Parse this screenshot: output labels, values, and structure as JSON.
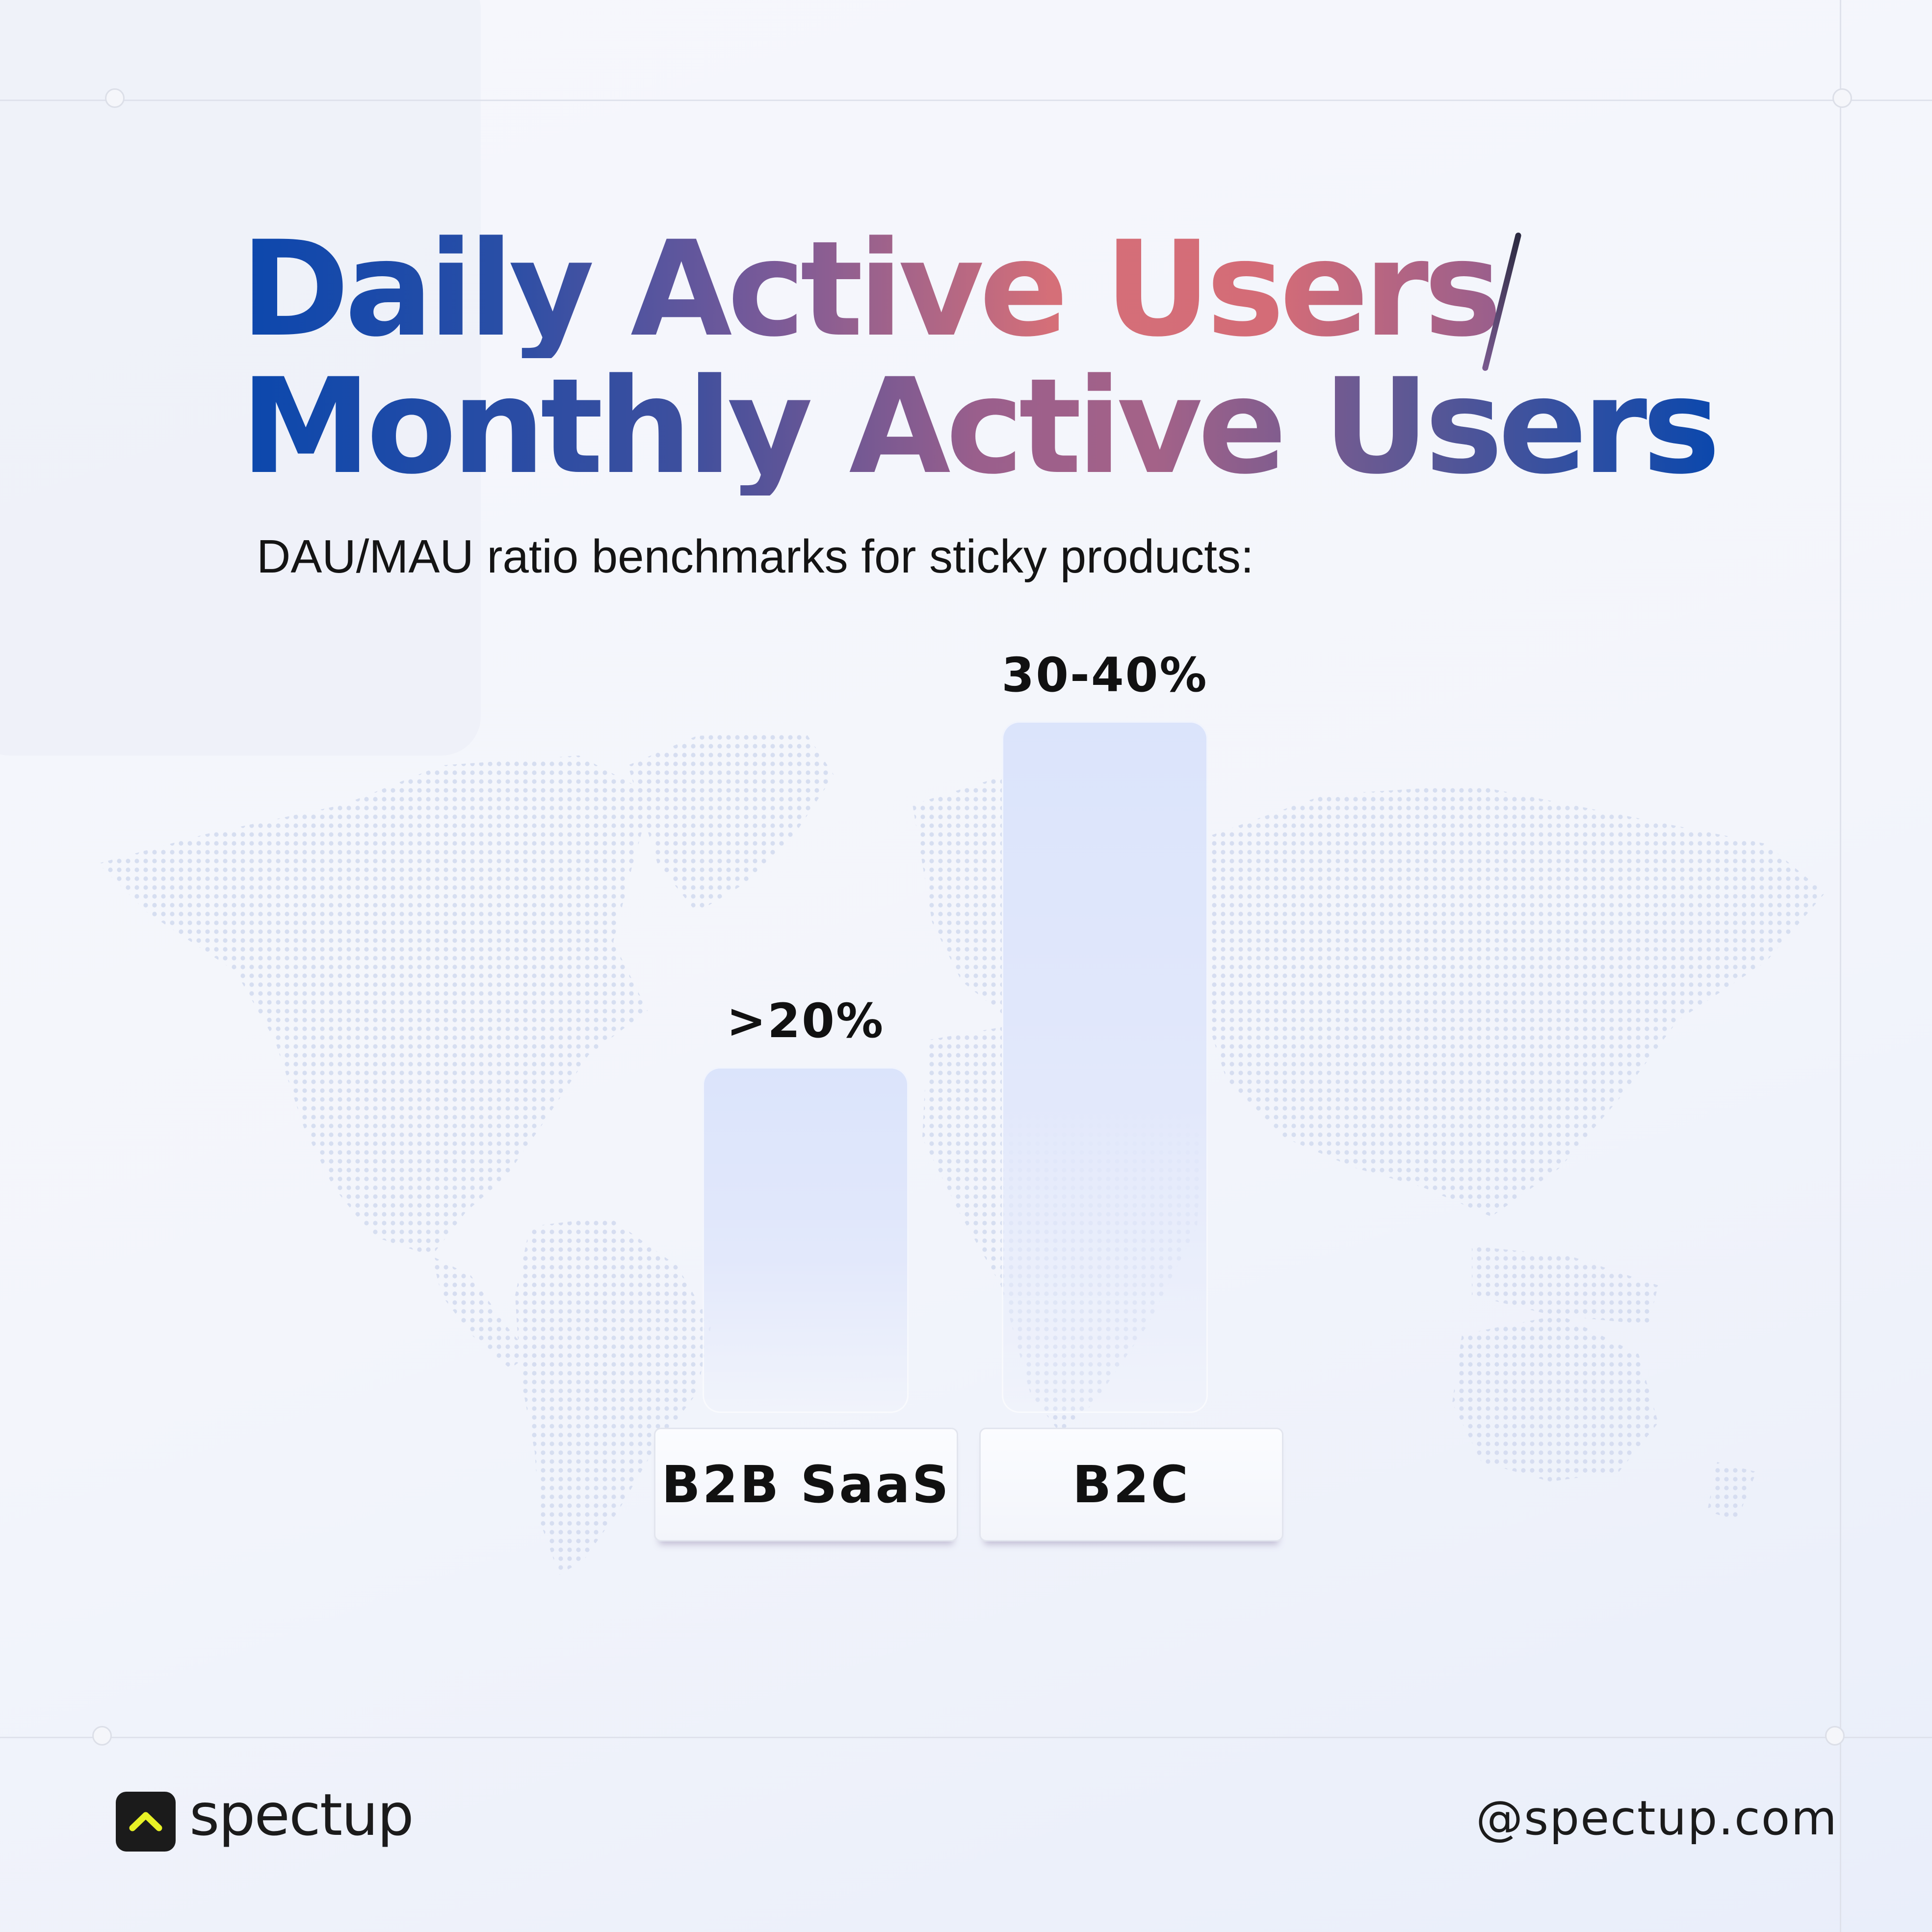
{
  "title": {
    "line1": "Daily Active Users",
    "line2": "Monthly Active Users"
  },
  "subtitle": "DAU/MAU ratio benchmarks for sticky products:",
  "chart_data": {
    "type": "bar",
    "categories": [
      "B2B SaaS",
      "B2C"
    ],
    "values": [
      20,
      40
    ],
    "data_labels": [
      ">20%",
      "30-40%"
    ],
    "ylim": [
      0,
      40
    ],
    "bar_color": "#dbe4fb"
  },
  "footer": {
    "brand": "spectup",
    "logo_icon": "chevron-up-icon",
    "logo_accent": "#e7f126",
    "handle": "@spectup.com"
  }
}
